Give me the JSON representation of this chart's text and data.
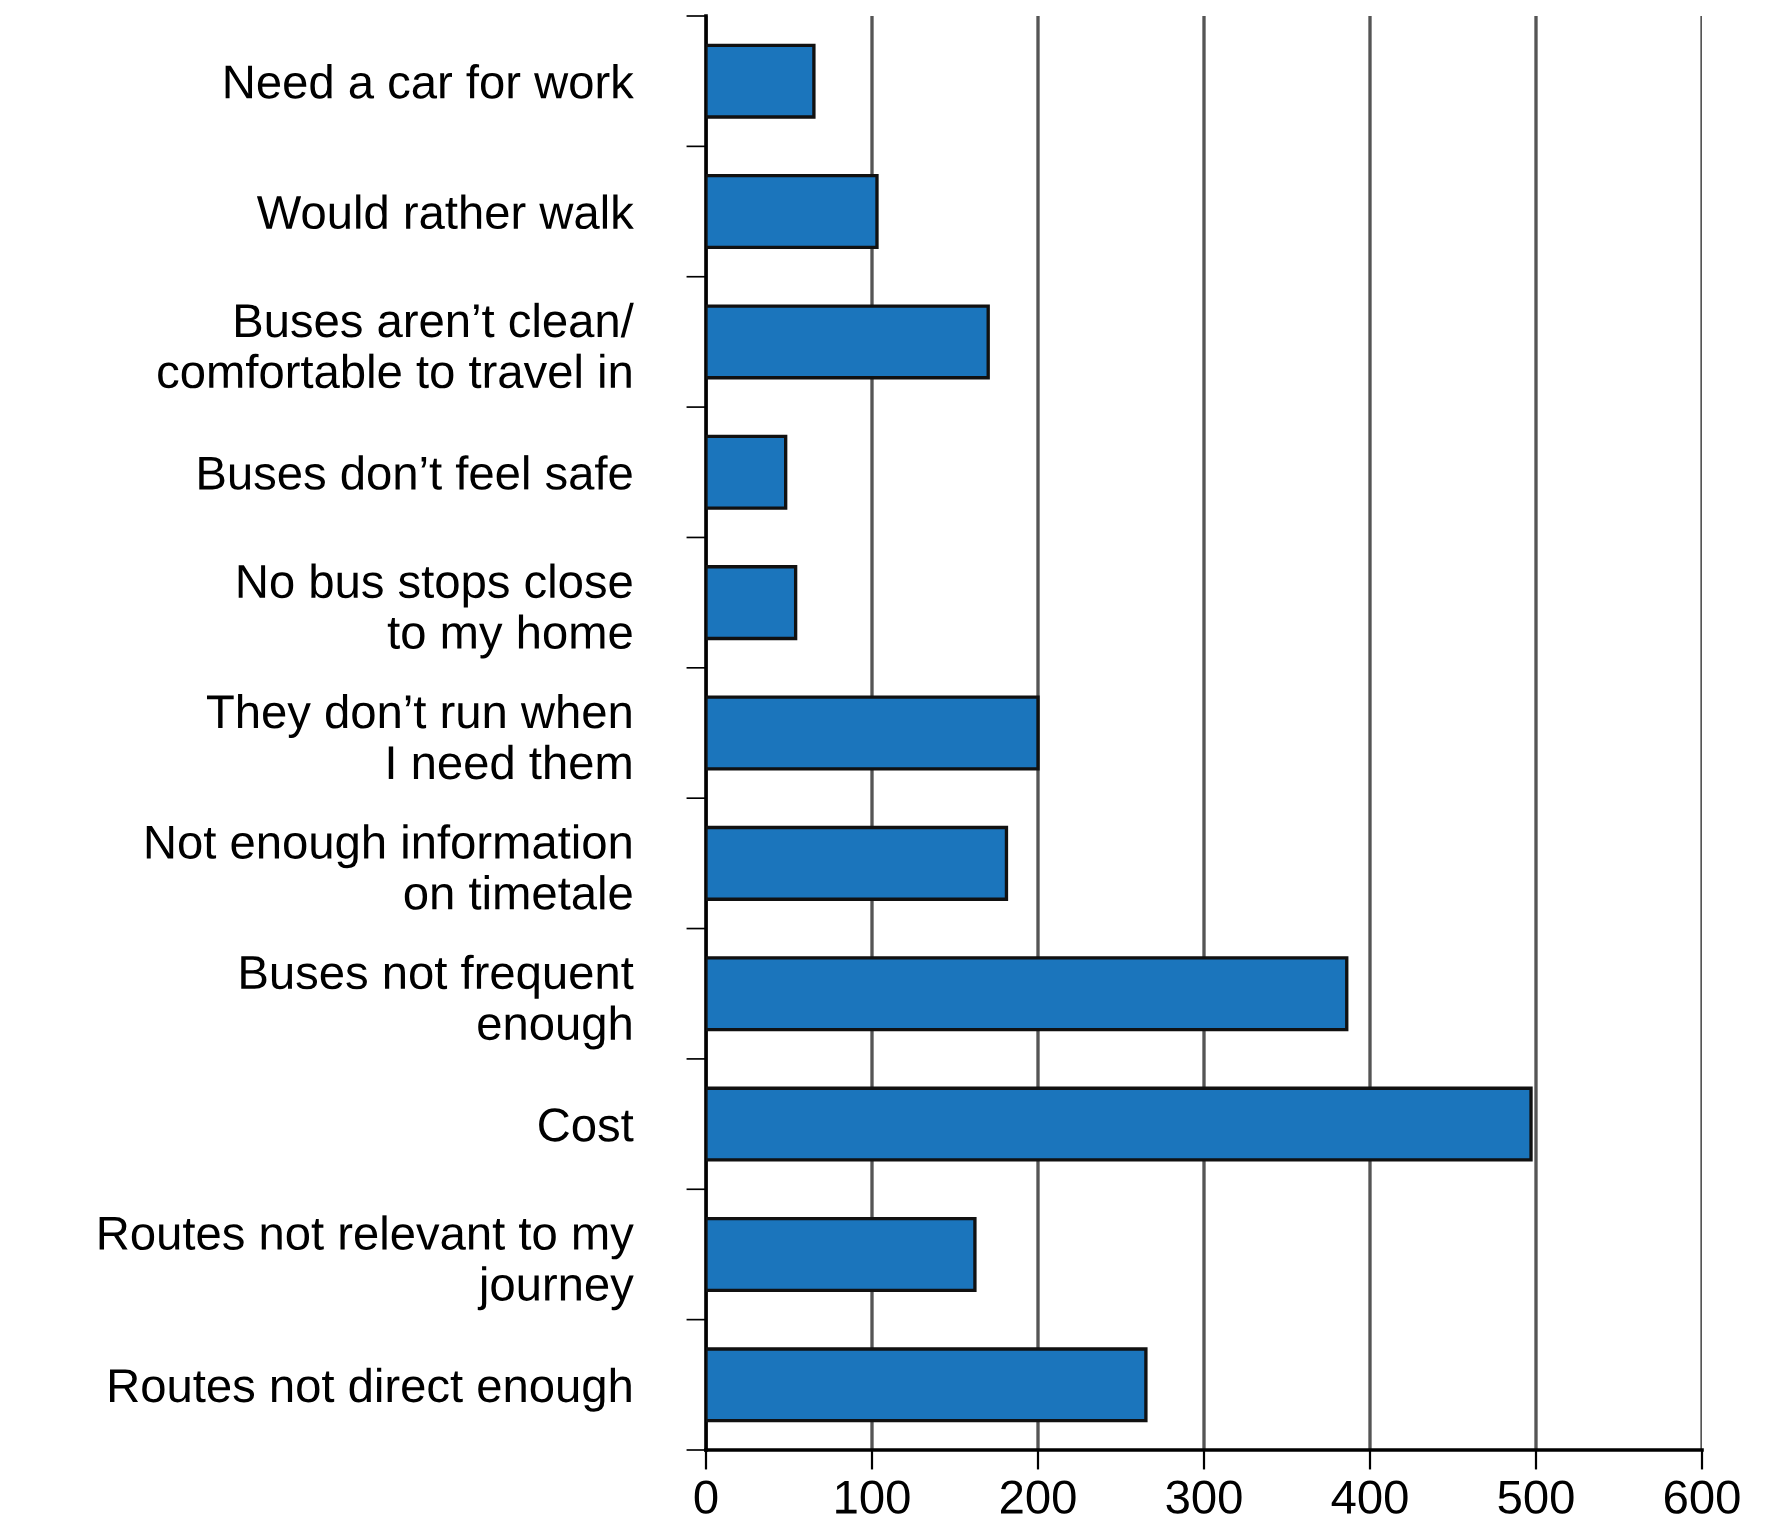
{
  "chart_data": {
    "type": "bar",
    "orientation": "horizontal",
    "categories": [
      "Need a car for work",
      "Would rather walk",
      "Buses aren’t clean/\ncomfortable to travel in",
      "Buses don’t feel safe",
      "No bus stops close\nto my home",
      "They don’t run when\nI need them",
      "Not enough information\non timetale",
      "Buses not frequent\nenough",
      "Cost",
      "Routes not relevant to my\njourney",
      "Routes not direct enough"
    ],
    "values": [
      65,
      103,
      170,
      48,
      54,
      200,
      181,
      386,
      497,
      162,
      265
    ],
    "color": "#1b75bc",
    "xlim": [
      0,
      600
    ],
    "xticks": [
      0,
      100,
      200,
      300,
      400,
      500,
      600
    ],
    "grid": "x",
    "legend": false
  }
}
